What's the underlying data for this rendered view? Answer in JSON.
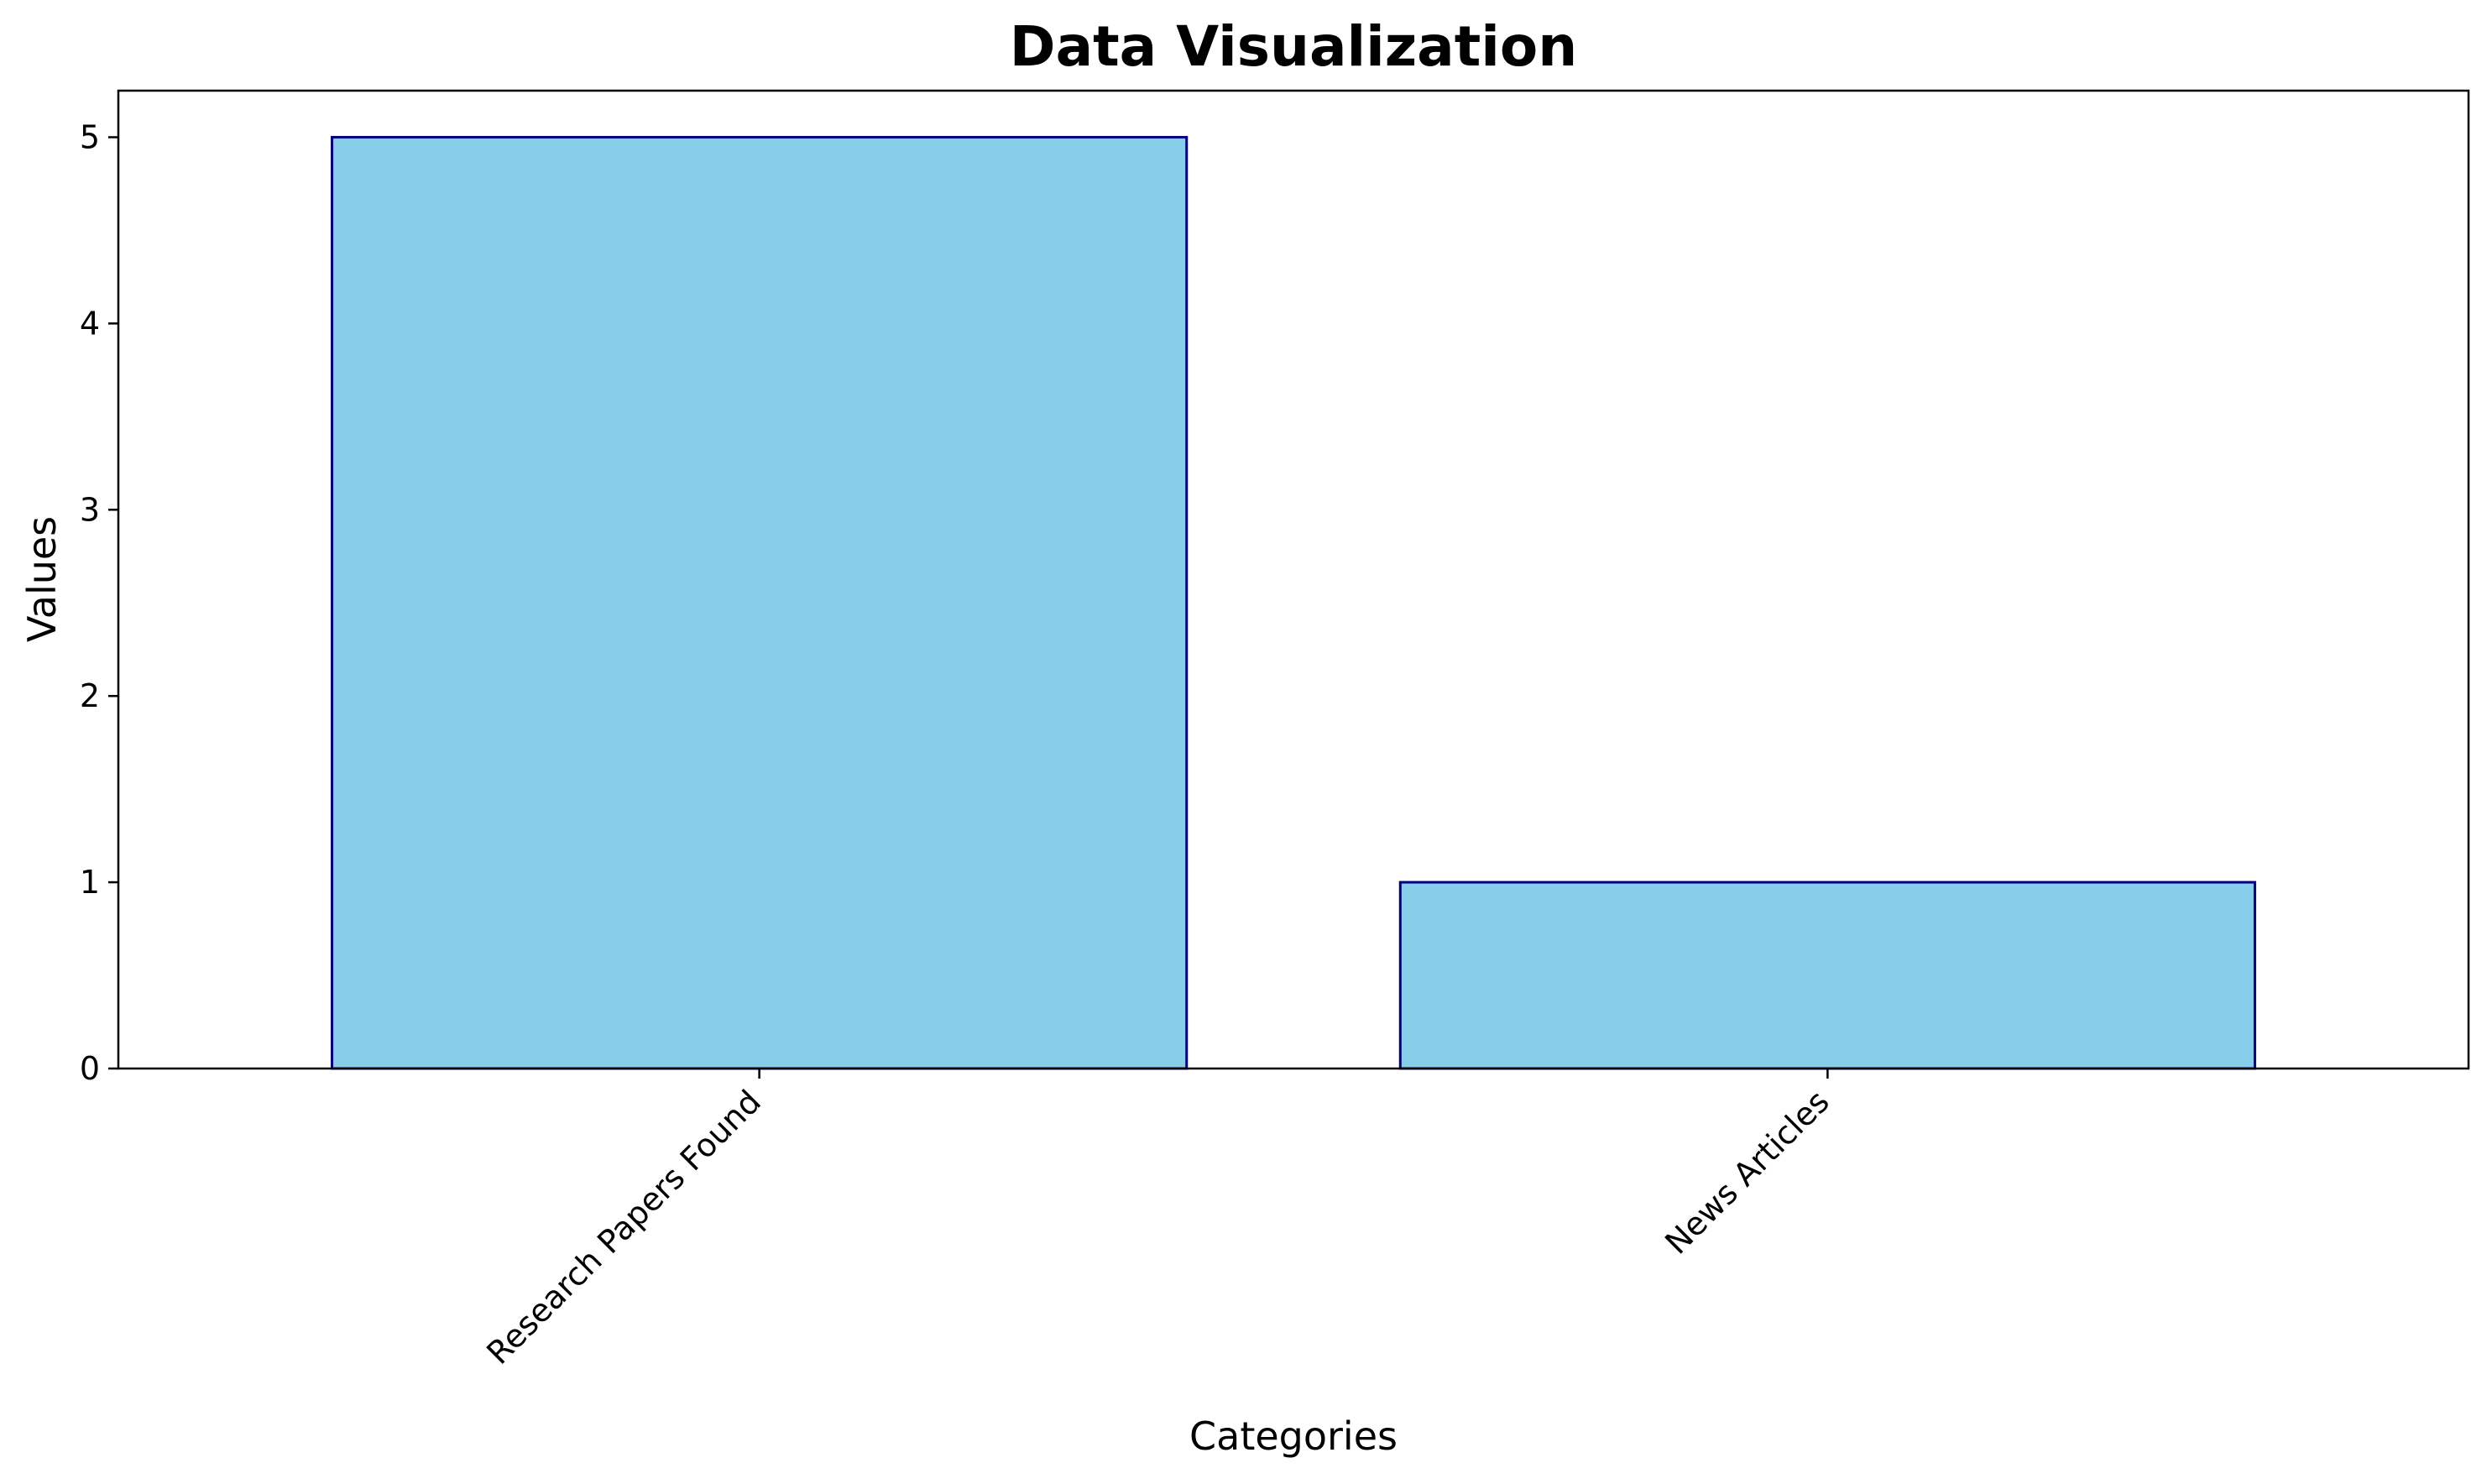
{
  "chart_data": {
    "type": "bar",
    "title": "Data Visualization",
    "xlabel": "Categories",
    "ylabel": "Values",
    "categories": [
      "Research Papers Found",
      "News Articles"
    ],
    "values": [
      5,
      1
    ],
    "ylim": [
      0,
      5.25
    ],
    "yticks": [
      0,
      1,
      2,
      3,
      4,
      5
    ],
    "grid": false,
    "legend": "none",
    "bar_fill_color": "#87CEEB",
    "bar_edge_color": "#000080",
    "xtick_label_rotation_deg": 45
  }
}
